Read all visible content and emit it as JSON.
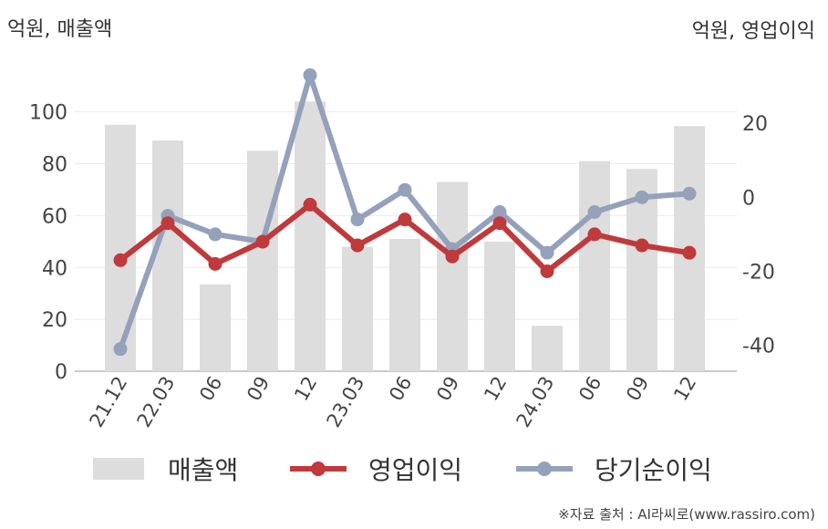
{
  "units": {
    "left": "억원, 매출액",
    "right": "억원, 영업이익"
  },
  "legend": {
    "revenue": "매출액",
    "operating": "영업이익",
    "net": "당기순이익"
  },
  "source": "※자료 출처 : AI라씨로(www.rassiro.com)",
  "colors": {
    "revenue": "#dddddd",
    "operating": "#c0393b",
    "net": "#95a1bb"
  },
  "chart_data": {
    "type": "bar+line",
    "categories": [
      "21.12",
      "22.03",
      "06",
      "09",
      "12",
      "23.03",
      "06",
      "09",
      "12",
      "24.03",
      "06",
      "09",
      "12"
    ],
    "series": [
      {
        "name": "매출액",
        "type": "bar",
        "axis": "left",
        "values": [
          95,
          89,
          33.5,
          85,
          104,
          48,
          51,
          73,
          50,
          17.5,
          81,
          78,
          94.5
        ]
      },
      {
        "name": "영업이익",
        "type": "line",
        "axis": "right",
        "values": [
          -17,
          -7,
          -18,
          -12,
          -2,
          -13,
          -6,
          -16,
          -7,
          -20,
          -10,
          -13,
          -15
        ]
      },
      {
        "name": "당기순이익",
        "type": "line",
        "axis": "right",
        "values": [
          -41,
          -5,
          -10,
          -12,
          33,
          -6,
          2,
          -14,
          -4,
          -15,
          -4,
          0,
          1
        ]
      }
    ],
    "y_left": {
      "min": 0,
      "max": 115,
      "ticks": [
        0,
        20,
        40,
        60,
        80,
        100
      ]
    },
    "y_right": {
      "min": -47,
      "max": 33.6,
      "ticks": [
        -40,
        -20,
        0,
        20
      ]
    },
    "grid": true,
    "legend_position": "bottom"
  }
}
